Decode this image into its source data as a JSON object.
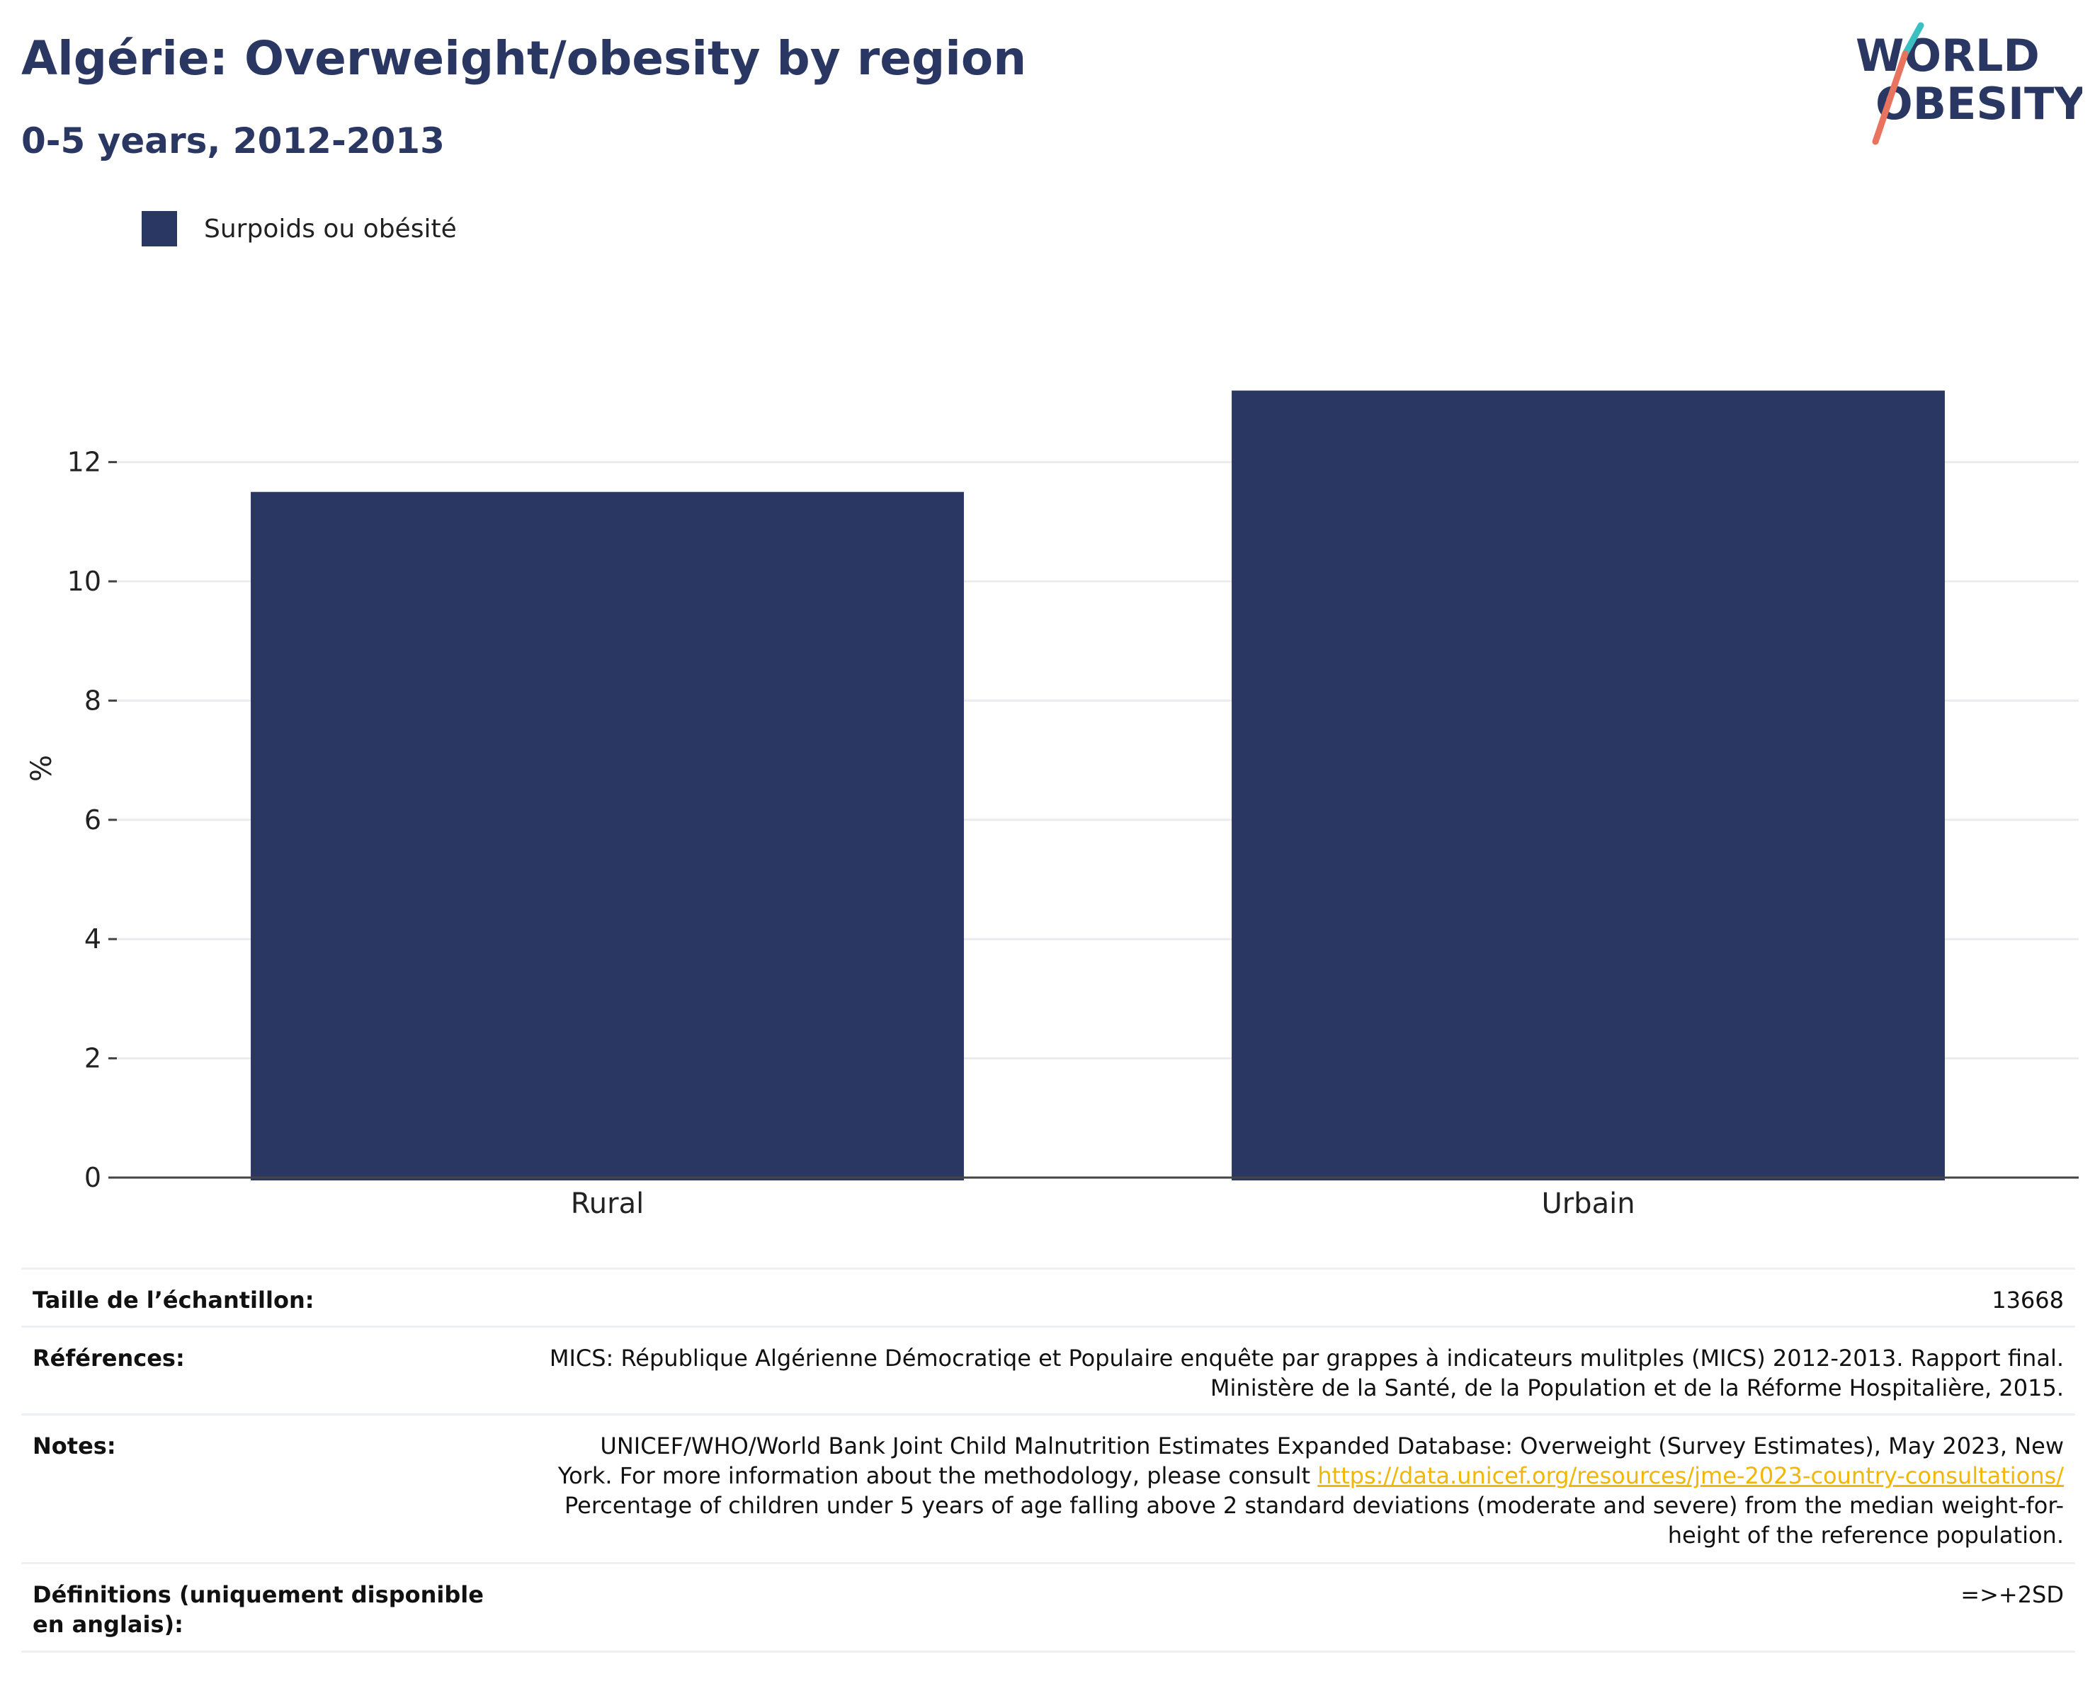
{
  "header": {
    "title": "Algérie: Overweight/obesity by region",
    "subtitle": "0-5 years, 2012-2013"
  },
  "logo": {
    "line1": "WORLD",
    "line2": "OBESITY"
  },
  "colors": {
    "bar": "#2a3763",
    "grid": "#e9ecef",
    "axis": "#444444",
    "link": "#f2b705",
    "logo_teal": "#3bbfc0",
    "logo_coral": "#e8735f"
  },
  "chart_data": {
    "type": "bar",
    "categories": [
      "Rural",
      "Urbain"
    ],
    "series": [
      {
        "name": "Surpoids ou obésité",
        "values": [
          11.5,
          13.2
        ]
      }
    ],
    "xlabel": "",
    "ylabel": "%",
    "ylim": [
      0,
      14
    ],
    "yticks": [
      0,
      2,
      4,
      6,
      8,
      10,
      12
    ],
    "grid": true,
    "legend": "top-left"
  },
  "info_table": {
    "sample_label": "Taille de l’échantillon:",
    "sample_value": "13668",
    "references_label": "Références:",
    "references_line1": "MICS: République Algérienne Démocratiqe et Populaire enquête par grappes à indicateurs mulitples (MICS) 2012-2013. Rapport final.",
    "references_line2": "Ministère de la Santé, de la Population et de la Réforme Hospitalière, 2015.",
    "notes_label": "Notes:",
    "notes_line1": "UNICEF/WHO/World Bank Joint Child Malnutrition Estimates Expanded Database: Overweight (Survey Estimates), May 2023, New",
    "notes_line2_prefix": "York. For more information about the methodology, please consult ",
    "notes_link": "https://data.unicef.org/resources/jme-2023-country-consultations/",
    "notes_line3": "Percentage of children under 5 years of age falling above 2 standard deviations (moderate and severe) from the median weight-for-",
    "notes_line4": "height of the reference population.",
    "definitions_label": "Définitions (uniquement disponible en anglais):",
    "definitions_value": "=>+2SD"
  }
}
